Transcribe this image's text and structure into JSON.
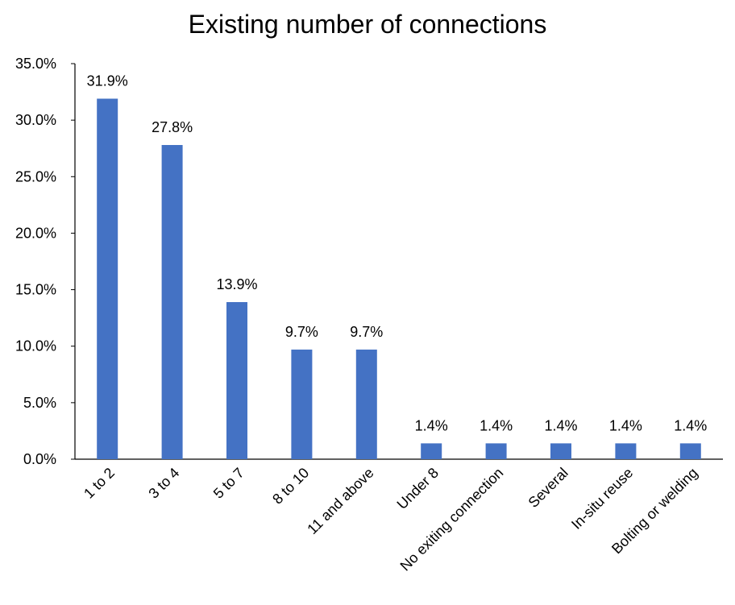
{
  "chart_data": {
    "type": "bar",
    "title": "Existing number of connections",
    "xlabel": "",
    "ylabel": "",
    "categories": [
      "1 to 2",
      "3 to 4",
      "5 to 7",
      "8 to 10",
      "11 and above",
      "Under 8",
      "No exiting connection",
      "Several",
      "In-situ reuse",
      "Bolting or welding"
    ],
    "values": [
      31.9,
      27.8,
      13.9,
      9.7,
      9.7,
      1.4,
      1.4,
      1.4,
      1.4,
      1.4
    ],
    "data_labels": [
      "31.9%",
      "27.8%",
      "13.9%",
      "9.7%",
      "9.7%",
      "1.4%",
      "1.4%",
      "1.4%",
      "1.4%",
      "1.4%"
    ],
    "ylim": [
      0,
      35
    ],
    "yticks": [
      0,
      5,
      10,
      15,
      20,
      25,
      30,
      35
    ],
    "ytick_labels": [
      "0.0%",
      "5.0%",
      "10.0%",
      "15.0%",
      "20.0%",
      "25.0%",
      "30.0%",
      "35.0%"
    ],
    "grid": false,
    "legend": "none",
    "bar_color": "#4472C4"
  }
}
